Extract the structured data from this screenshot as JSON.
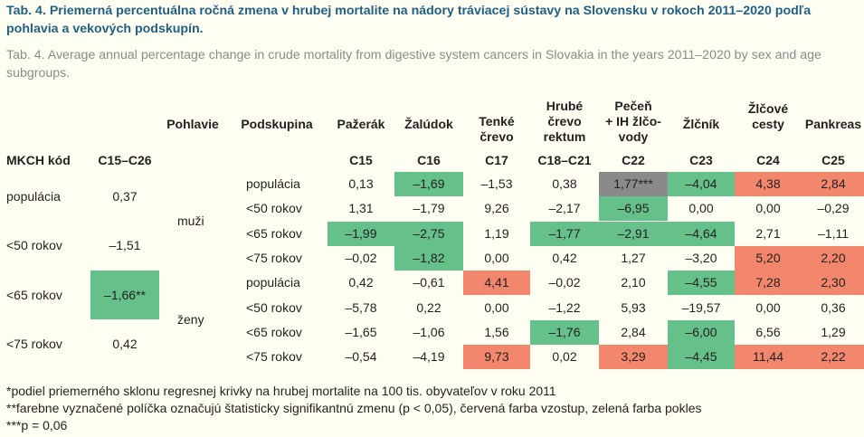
{
  "title_sk": "Tab. 4. Priemerná percentuálna ročná zmena v hrubej mortalite na nádory tráviacej sústavy na Slovensku v rokoch 2011–2020 podľa pohlavia a vekových podskupín.",
  "title_en": "Tab. 4. Average annual percentage change in crude mortality from digestive system cancers in Slovakia in the years 2011–2020 by sex and age subgroups.",
  "columns": {
    "pohlavie": "Pohlavie",
    "podskupina": "Podskupina",
    "c15": "Pažerák",
    "c16": "Žalúdok",
    "c17": "Tenké\nčrevo",
    "c18": "Hrubé\nčrevo\nrektum",
    "c22": "Pečeň\n+ IH žlčo-\nvody",
    "c23": "Žlčník",
    "c24": "Žlčové\ncesty",
    "c25": "Pankreas"
  },
  "codes": {
    "label": "MKCH kód",
    "total": "C15–C26",
    "c15": "C15",
    "c16": "C16",
    "c17": "C17",
    "c18": "C18–C21",
    "c22": "C22",
    "c23": "C23",
    "c24": "C24",
    "c25": "C25"
  },
  "left_rows": [
    {
      "label": "populácia",
      "value": "0,37",
      "color": ""
    },
    {
      "label": "<50 rokov",
      "value": "–1,51",
      "color": ""
    },
    {
      "label": "<65 rokov",
      "value": "–1,66**",
      "color": "g"
    },
    {
      "label": "<75 rokov",
      "value": "0,42",
      "color": ""
    }
  ],
  "sex": {
    "male": "muži",
    "female": "ženy"
  },
  "rows": [
    {
      "sub": "populácia",
      "cells": [
        [
          "0,13",
          ""
        ],
        [
          "–1,69",
          "g"
        ],
        [
          "–1,53",
          ""
        ],
        [
          "0,38",
          ""
        ],
        [
          "1,77***",
          "x"
        ],
        [
          "–4,04",
          "g"
        ],
        [
          "4,38",
          "r"
        ],
        [
          "2,84",
          "r"
        ]
      ]
    },
    {
      "sub": "<50 rokov",
      "cells": [
        [
          "1,31",
          ""
        ],
        [
          "–1,79",
          ""
        ],
        [
          "9,26",
          ""
        ],
        [
          "–2,17",
          ""
        ],
        [
          "–6,95",
          "g"
        ],
        [
          "0,00",
          ""
        ],
        [
          "0,00",
          ""
        ],
        [
          "–0,29",
          ""
        ]
      ]
    },
    {
      "sub": "<65 rokov",
      "cells": [
        [
          "–1,99",
          "g"
        ],
        [
          "–2,75",
          "g"
        ],
        [
          "1,19",
          ""
        ],
        [
          "–1,77",
          "g"
        ],
        [
          "–2,91",
          "g"
        ],
        [
          "–4,64",
          "g"
        ],
        [
          "2,71",
          ""
        ],
        [
          "–1,11",
          ""
        ]
      ]
    },
    {
      "sub": "<75 rokov",
      "cells": [
        [
          "–0,02",
          ""
        ],
        [
          "–1,82",
          "g"
        ],
        [
          "0,00",
          ""
        ],
        [
          "0,42",
          ""
        ],
        [
          "1,27",
          ""
        ],
        [
          "–3,20",
          ""
        ],
        [
          "5,20",
          "r"
        ],
        [
          "2,20",
          "r"
        ]
      ]
    },
    {
      "sub": "populácia",
      "cells": [
        [
          "0,42",
          ""
        ],
        [
          "–0,61",
          ""
        ],
        [
          "4,41",
          "r"
        ],
        [
          "–0,02",
          ""
        ],
        [
          "2,10",
          ""
        ],
        [
          "–4,55",
          "g"
        ],
        [
          "7,28",
          "r"
        ],
        [
          "2,30",
          "r"
        ]
      ]
    },
    {
      "sub": "<50 rokov",
      "cells": [
        [
          "–5,78",
          ""
        ],
        [
          "0,22",
          ""
        ],
        [
          "0,00",
          ""
        ],
        [
          "–1,22",
          ""
        ],
        [
          "5,93",
          ""
        ],
        [
          "–19,57",
          ""
        ],
        [
          "0,00",
          ""
        ],
        [
          "0,36",
          ""
        ]
      ]
    },
    {
      "sub": "<65 rokov",
      "cells": [
        [
          "–1,65",
          ""
        ],
        [
          "–1,06",
          ""
        ],
        [
          "1,56",
          ""
        ],
        [
          "–1,76",
          "g"
        ],
        [
          "2,84",
          ""
        ],
        [
          "–6,00",
          "g"
        ],
        [
          "6,56",
          ""
        ],
        [
          "1,29",
          ""
        ]
      ]
    },
    {
      "sub": "<75 rokov",
      "cells": [
        [
          "–0,54",
          ""
        ],
        [
          "–4,19",
          ""
        ],
        [
          "9,73",
          "r"
        ],
        [
          "0,02",
          ""
        ],
        [
          "3,29",
          "r"
        ],
        [
          "–4,45",
          "g"
        ],
        [
          "11,44",
          "r"
        ],
        [
          "2,22",
          "r"
        ]
      ]
    }
  ],
  "notes": [
    "*podiel priemerného sklonu regresnej krivky na hrubej mortalite na 100 tis. obyvateľov v roku 2011",
    "**farebne vyznačené políčka označujú štatisticky signifikantnú zmenu (p < 0,05), červená farba vzostup, zelená farba pokles",
    "***p = 0,06"
  ]
}
